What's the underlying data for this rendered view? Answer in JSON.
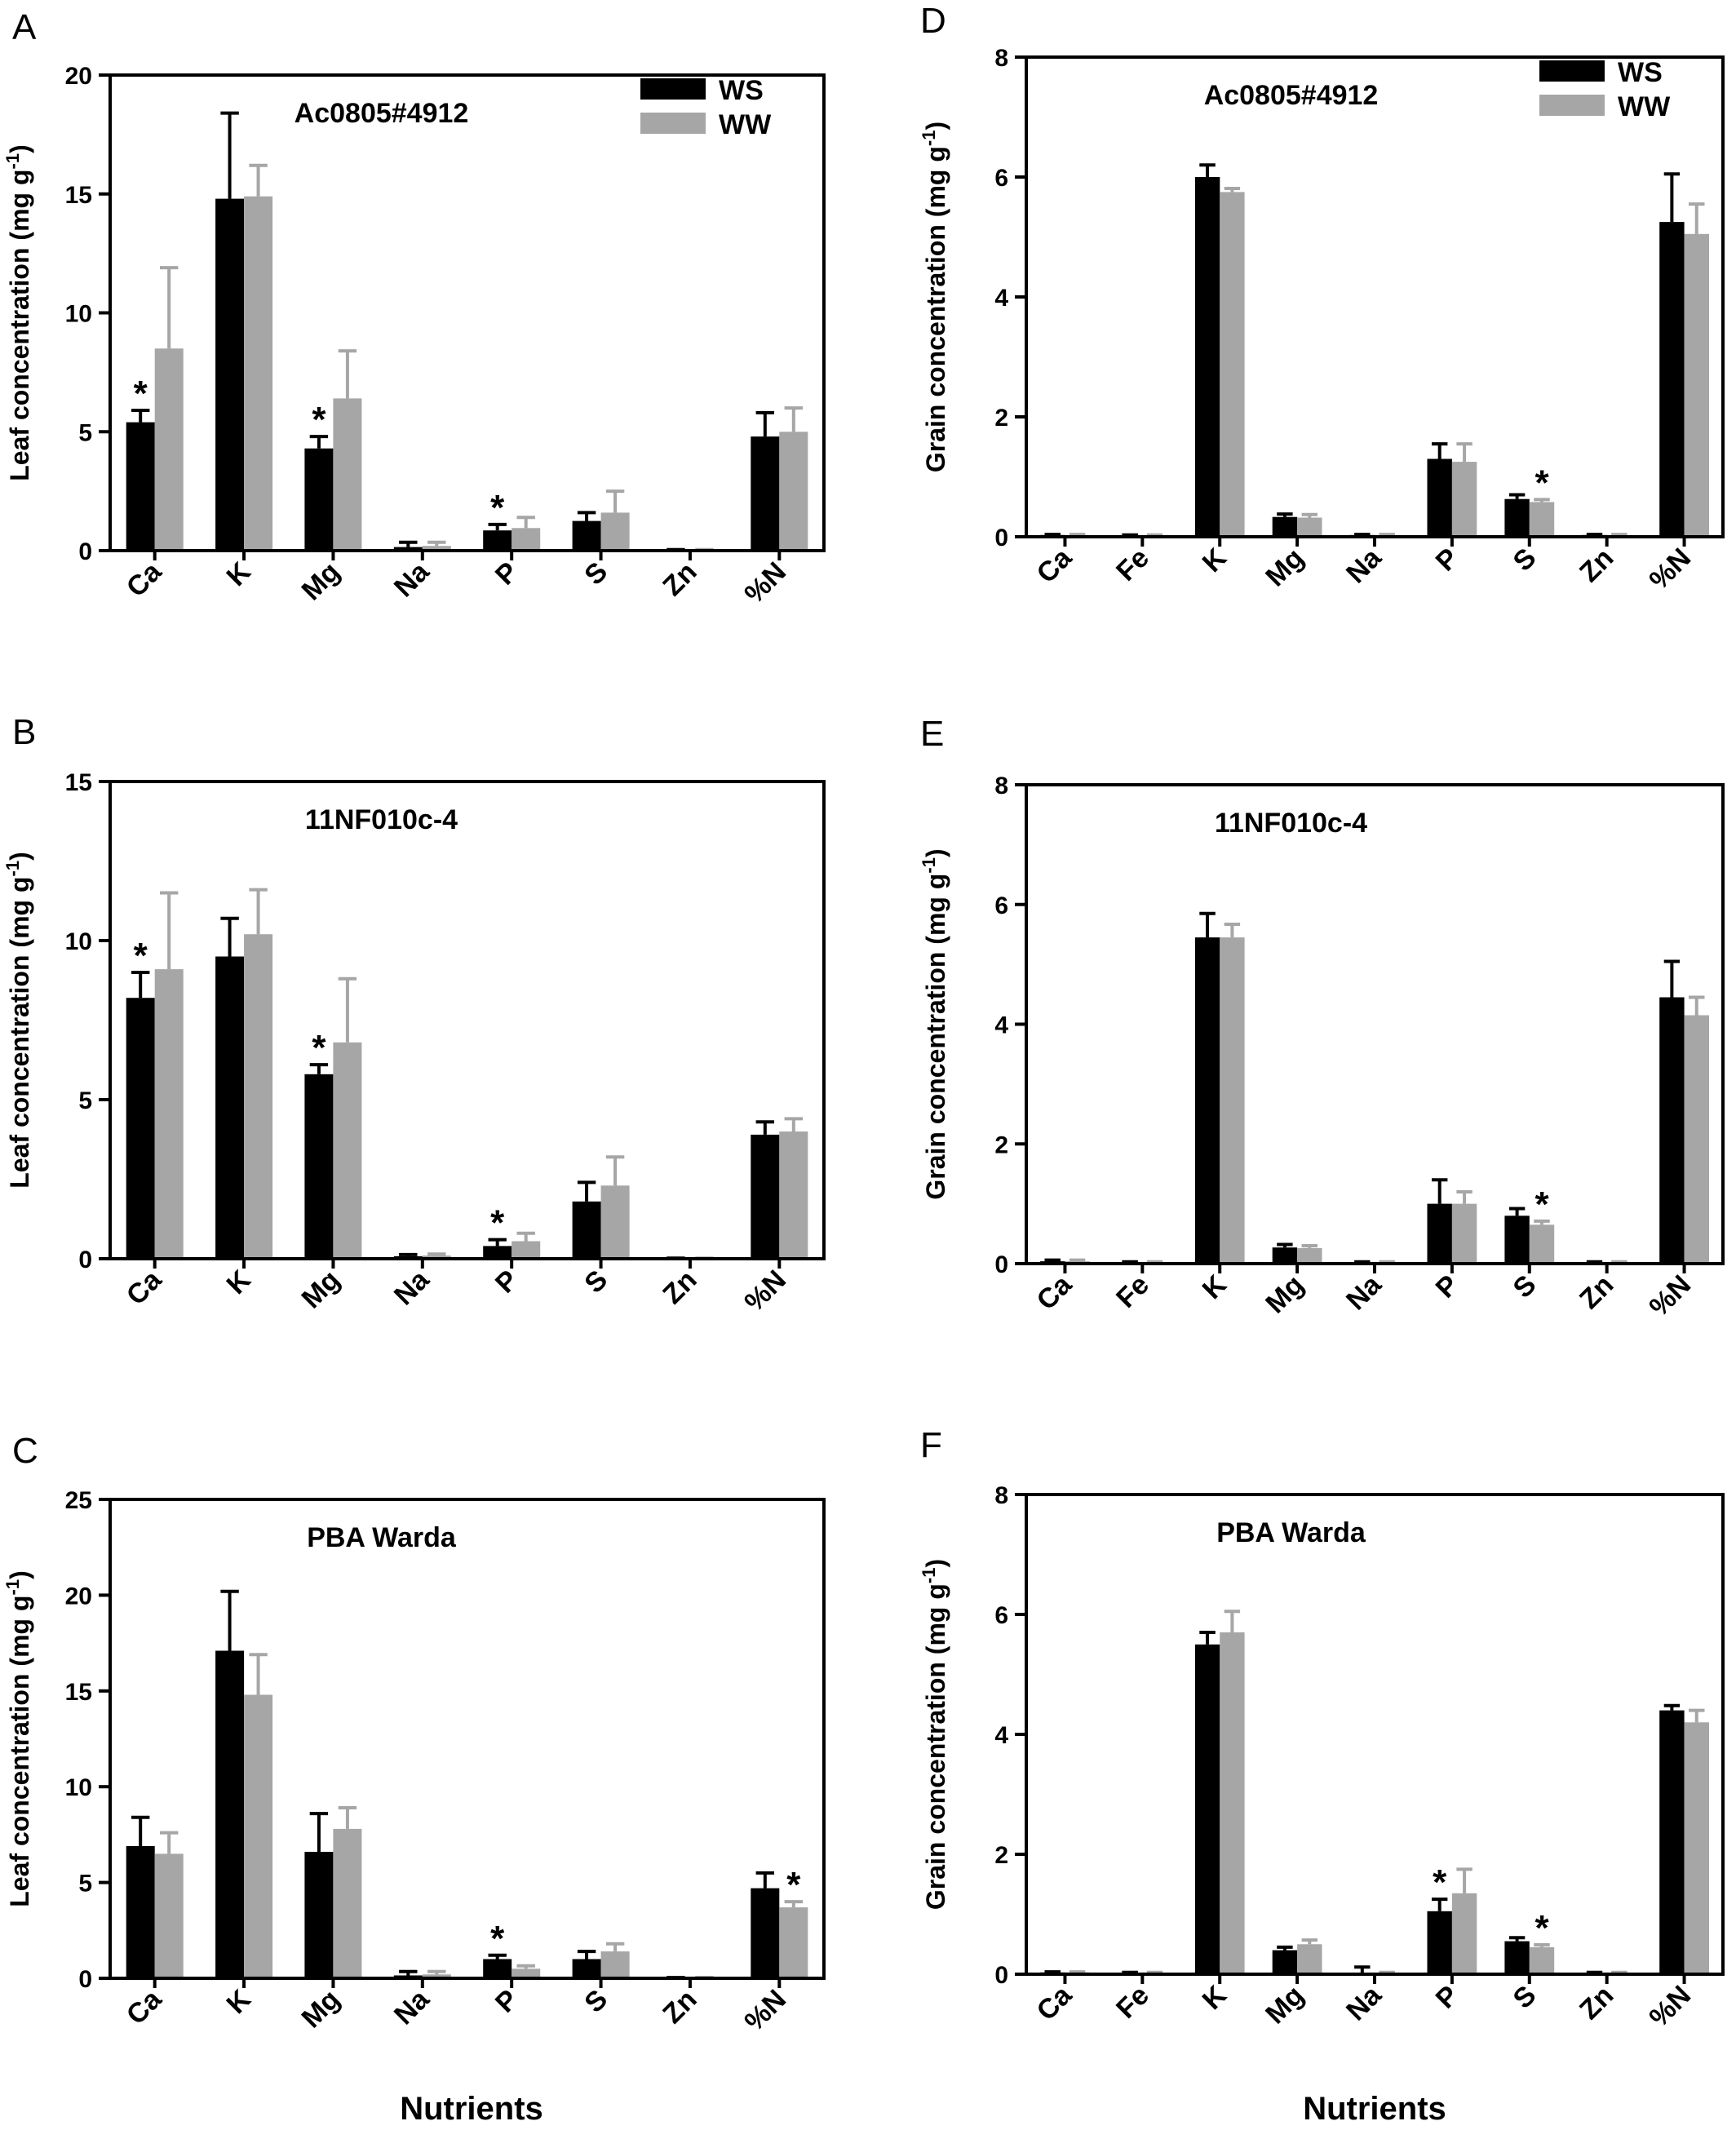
{
  "colors": {
    "WS": "#000000",
    "WW": "#a6a6a6",
    "axis": "#000000"
  },
  "legend": [
    {
      "label": "WS",
      "key": "WS"
    },
    {
      "label": "WW",
      "key": "WW"
    }
  ],
  "xlabel": "Nutrients",
  "chart_data": [
    {
      "id": "A",
      "letter": "A",
      "type": "bar",
      "title": "Ac0805#4912",
      "ylabel": "Leaf concentration (mg g",
      "ylabel_sup": "-1",
      "ylabel_end": ")",
      "ylim": [
        0,
        20
      ],
      "yticks": [
        0,
        5,
        10,
        15,
        20
      ],
      "legend": true,
      "categories": [
        "Ca",
        "K",
        "Mg",
        "Na",
        "P",
        "S",
        "Zn",
        "%N"
      ],
      "series": [
        {
          "name": "WS",
          "values": [
            5.4,
            14.8,
            4.3,
            0.15,
            0.85,
            1.25,
            0.02,
            4.8
          ],
          "errors": [
            0.5,
            3.6,
            0.5,
            0.2,
            0.25,
            0.35,
            0.02,
            1.0
          ]
        },
        {
          "name": "WW",
          "values": [
            8.5,
            14.9,
            6.4,
            0.2,
            0.95,
            1.6,
            0.02,
            5.0
          ],
          "errors": [
            3.4,
            1.3,
            2.0,
            0.15,
            0.45,
            0.9,
            0.02,
            1.0
          ]
        }
      ],
      "significant": [
        {
          "category": "Ca",
          "series": "WS",
          "label": "*"
        },
        {
          "category": "Mg",
          "series": "WS",
          "label": "*"
        },
        {
          "category": "P",
          "series": "WS",
          "label": "*"
        }
      ]
    },
    {
      "id": "B",
      "letter": "B",
      "type": "bar",
      "title": "11NF010c-4",
      "ylabel": "Leaf concentration (mg g",
      "ylabel_sup": "-1",
      "ylabel_end": ")",
      "ylim": [
        0,
        15
      ],
      "yticks": [
        0,
        5,
        10,
        15
      ],
      "legend": false,
      "categories": [
        "Ca",
        "K",
        "Mg",
        "Na",
        "P",
        "S",
        "Zn",
        "%N"
      ],
      "series": [
        {
          "name": "WS",
          "values": [
            8.2,
            9.5,
            5.8,
            0.08,
            0.4,
            1.8,
            0.01,
            3.9
          ],
          "errors": [
            0.8,
            1.2,
            0.3,
            0.05,
            0.2,
            0.6,
            0.01,
            0.4
          ]
        },
        {
          "name": "WW",
          "values": [
            9.1,
            10.2,
            6.8,
            0.1,
            0.55,
            2.3,
            0.01,
            4.0
          ],
          "errors": [
            2.4,
            1.4,
            2.0,
            0.05,
            0.25,
            0.9,
            0.01,
            0.4
          ]
        }
      ],
      "significant": [
        {
          "category": "Ca",
          "series": "WS",
          "label": "*"
        },
        {
          "category": "Mg",
          "series": "WS",
          "label": "*"
        },
        {
          "category": "P",
          "series": "WS",
          "label": "*"
        }
      ]
    },
    {
      "id": "C",
      "letter": "C",
      "type": "bar",
      "title": "PBA Warda",
      "ylabel": "Leaf concentration (mg g",
      "ylabel_sup": "-1",
      "ylabel_end": ")",
      "ylim": [
        0,
        25
      ],
      "yticks": [
        0,
        5,
        10,
        15,
        20,
        25
      ],
      "legend": false,
      "categories": [
        "Ca",
        "K",
        "Mg",
        "Na",
        "P",
        "S",
        "Zn",
        "%N"
      ],
      "series": [
        {
          "name": "WS",
          "values": [
            6.9,
            17.1,
            6.6,
            0.15,
            1.0,
            1.0,
            0.02,
            4.7
          ],
          "errors": [
            1.5,
            3.1,
            2.0,
            0.2,
            0.2,
            0.4,
            0.02,
            0.8
          ]
        },
        {
          "name": "WW",
          "values": [
            6.5,
            14.8,
            7.8,
            0.2,
            0.5,
            1.4,
            0.02,
            3.7
          ],
          "errors": [
            1.1,
            2.1,
            1.1,
            0.15,
            0.15,
            0.4,
            0.02,
            0.3
          ]
        }
      ],
      "significant": [
        {
          "category": "P",
          "series": "WS",
          "label": "*"
        },
        {
          "category": "%N",
          "series": "WW",
          "label": "*"
        }
      ]
    },
    {
      "id": "D",
      "letter": "D",
      "type": "bar",
      "title": "Ac0805#4912",
      "ylabel": "Grain concentration (mg g",
      "ylabel_sup": "-1",
      "ylabel_end": ")",
      "ylim": [
        0,
        8
      ],
      "yticks": [
        0,
        2,
        4,
        6,
        8
      ],
      "legend": true,
      "categories": [
        "Ca",
        "Fe",
        "K",
        "Mg",
        "Na",
        "P",
        "S",
        "Zn",
        "%N"
      ],
      "series": [
        {
          "name": "WS",
          "values": [
            0.03,
            0.02,
            6.0,
            0.33,
            0.03,
            1.3,
            0.63,
            0.03,
            5.25
          ],
          "errors": [
            0.01,
            0.01,
            0.2,
            0.05,
            0.01,
            0.25,
            0.07,
            0.01,
            0.8
          ]
        },
        {
          "name": "WW",
          "values": [
            0.03,
            0.02,
            5.75,
            0.32,
            0.03,
            1.25,
            0.58,
            0.03,
            5.05
          ],
          "errors": [
            0.01,
            0.01,
            0.06,
            0.05,
            0.01,
            0.3,
            0.04,
            0.01,
            0.5
          ]
        }
      ],
      "significant": [
        {
          "category": "S",
          "series": "WW",
          "label": "*"
        }
      ]
    },
    {
      "id": "E",
      "letter": "E",
      "type": "bar",
      "title": "11NF010c-4",
      "ylabel": "Grain concentration (mg g",
      "ylabel_sup": "-1",
      "ylabel_end": ")",
      "ylim": [
        0,
        8
      ],
      "yticks": [
        0,
        2,
        4,
        6,
        8
      ],
      "legend": false,
      "categories": [
        "Ca",
        "Fe",
        "K",
        "Mg",
        "Na",
        "P",
        "S",
        "Zn",
        "%N"
      ],
      "series": [
        {
          "name": "WS",
          "values": [
            0.04,
            0.02,
            5.45,
            0.27,
            0.02,
            1.0,
            0.8,
            0.02,
            4.45
          ],
          "errors": [
            0.02,
            0.01,
            0.4,
            0.05,
            0.01,
            0.4,
            0.12,
            0.01,
            0.6
          ]
        },
        {
          "name": "WW",
          "values": [
            0.04,
            0.02,
            5.45,
            0.26,
            0.02,
            1.0,
            0.65,
            0.02,
            4.15
          ],
          "errors": [
            0.02,
            0.01,
            0.22,
            0.04,
            0.01,
            0.2,
            0.06,
            0.01,
            0.3
          ]
        }
      ],
      "significant": [
        {
          "category": "S",
          "series": "WW",
          "label": "*"
        }
      ]
    },
    {
      "id": "F",
      "letter": "F",
      "type": "bar",
      "title": "PBA Warda",
      "ylabel": "Grain concentration (mg g",
      "ylabel_sup": "-1",
      "ylabel_end": ")",
      "ylim": [
        0,
        8
      ],
      "yticks": [
        0,
        2,
        4,
        6,
        8
      ],
      "legend": false,
      "categories": [
        "Ca",
        "Fe",
        "K",
        "Mg",
        "Na",
        "P",
        "S",
        "Zn",
        "%N"
      ],
      "series": [
        {
          "name": "WS",
          "values": [
            0.03,
            0.02,
            5.5,
            0.4,
            0.02,
            1.05,
            0.55,
            0.02,
            4.4
          ],
          "errors": [
            0.01,
            0.01,
            0.2,
            0.05,
            0.1,
            0.2,
            0.06,
            0.01,
            0.08
          ]
        },
        {
          "name": "WW",
          "values": [
            0.03,
            0.02,
            5.7,
            0.5,
            0.02,
            1.35,
            0.45,
            0.02,
            4.2
          ],
          "errors": [
            0.01,
            0.01,
            0.35,
            0.07,
            0.01,
            0.4,
            0.04,
            0.01,
            0.2
          ]
        }
      ],
      "significant": [
        {
          "category": "P",
          "series": "WS",
          "label": "*"
        },
        {
          "category": "S",
          "series": "WW",
          "label": "*"
        }
      ]
    }
  ]
}
